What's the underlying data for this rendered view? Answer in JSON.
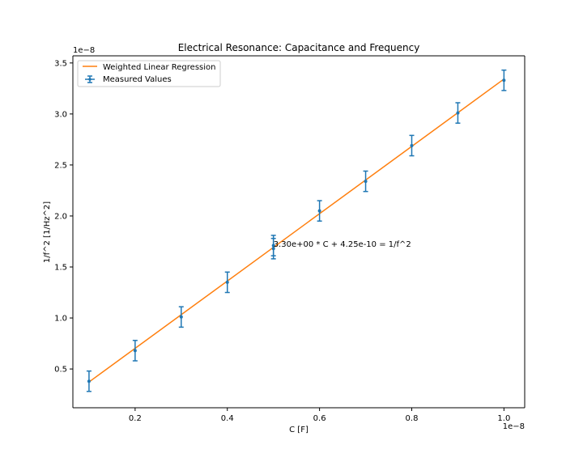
{
  "chart_data": {
    "type": "scatter",
    "title": "Electrical Resonance: Capacitance and Frequency",
    "xlabel": "C [F]",
    "ylabel": "1/f^2 [1/Hz^2]",
    "x_multiplier_label": "1e−8",
    "y_multiplier_label": "1e−8",
    "x_scale": 1e-08,
    "y_scale": 1e-08,
    "xlim": [
      0.065,
      1.045
    ],
    "ylim": [
      0.12,
      3.57
    ],
    "x_ticks": [
      0.2,
      0.4,
      0.6,
      0.8,
      1.0
    ],
    "x_tick_labels": [
      "0.2",
      "0.4",
      "0.6",
      "0.8",
      "1.0"
    ],
    "y_ticks": [
      0.5,
      1.0,
      1.5,
      2.0,
      2.5,
      3.0,
      3.5
    ],
    "y_tick_labels": [
      "0.5",
      "1.0",
      "1.5",
      "2.0",
      "2.5",
      "3.0",
      "3.5"
    ],
    "grid": false,
    "legend_position": "top-left",
    "colors": {
      "measured": "#1f77b4",
      "fit": "#ff7f0e"
    },
    "series": [
      {
        "name": "Measured Values",
        "kind": "errorbar",
        "x": [
          0.1,
          0.2,
          0.3,
          0.4,
          0.5,
          0.5,
          0.6,
          0.7,
          0.8,
          0.9,
          1.0
        ],
        "y": [
          0.38,
          0.68,
          1.01,
          1.35,
          1.71,
          1.68,
          2.05,
          2.34,
          2.69,
          3.01,
          3.33
        ],
        "yerr": [
          0.1,
          0.1,
          0.1,
          0.1,
          0.1,
          0.1,
          0.1,
          0.1,
          0.1,
          0.1,
          0.1
        ]
      },
      {
        "name": "Weighted Linear Regression",
        "kind": "line",
        "x": [
          0.1,
          1.0
        ],
        "y": [
          0.3725,
          3.3425
        ]
      }
    ],
    "annotation": "3.30e+00 * C + 4.25e-10 = 1/f^2",
    "annotation_at": {
      "x": 0.5,
      "y": 1.73
    }
  }
}
